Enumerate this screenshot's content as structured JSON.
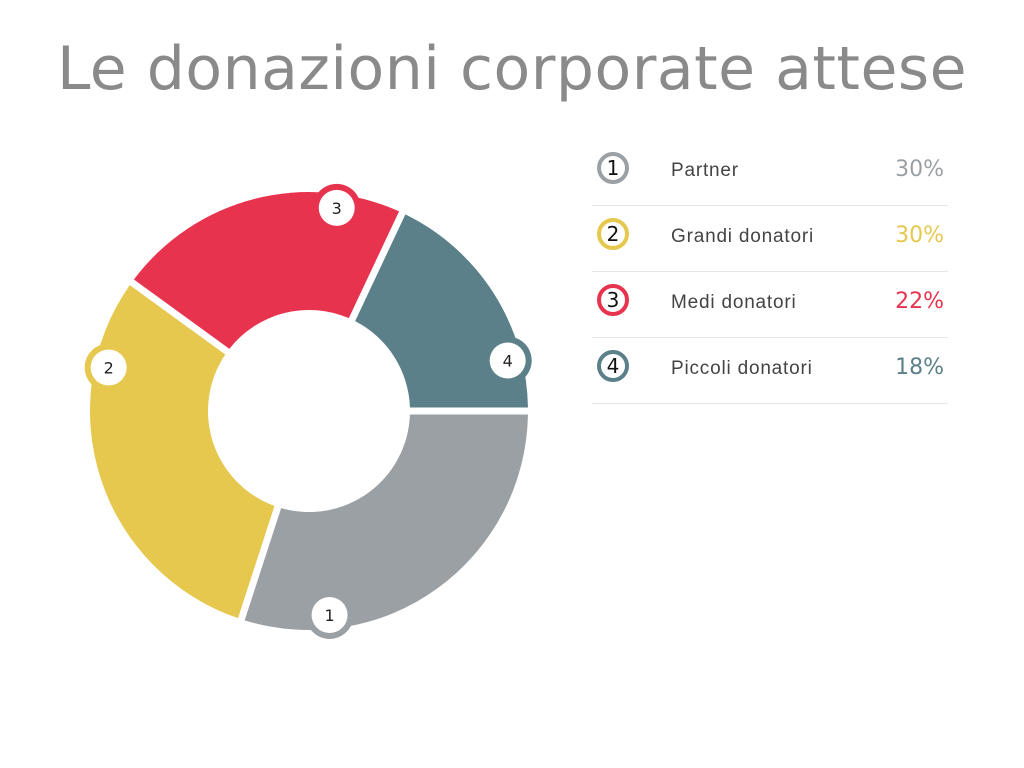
{
  "chart_data": {
    "type": "pie",
    "variant": "donut",
    "title": "Le donazioni corporate attese",
    "unit": "%",
    "grid": false,
    "legend_position": "right",
    "series": [
      {
        "marker": "1",
        "name": "Partner",
        "value": 30,
        "value_label": "30%",
        "color": "#9aa0a4"
      },
      {
        "marker": "2",
        "name": "Grandi donatori",
        "value": 30,
        "value_label": "30%",
        "color": "#e5c84d"
      },
      {
        "marker": "3",
        "name": "Medi donatori",
        "value": 22,
        "value_label": "22%",
        "color": "#e8334f"
      },
      {
        "marker": "4",
        "name": "Piccoli donatori",
        "value": 18,
        "value_label": "18%",
        "color": "#5b8089"
      }
    ]
  }
}
